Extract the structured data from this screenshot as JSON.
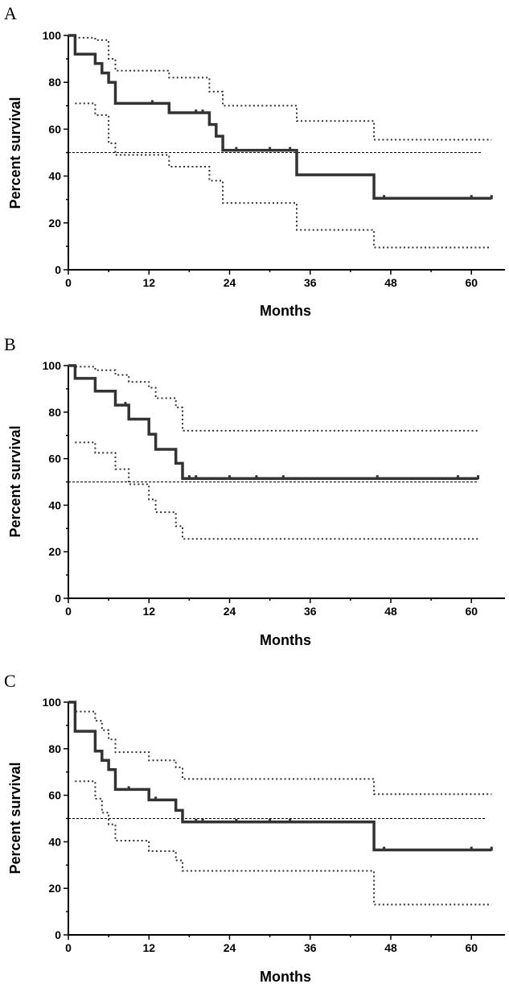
{
  "chart_data": [
    {
      "panel": "A",
      "type": "line",
      "step": true,
      "xlabel": "Months",
      "ylabel": "Percent survival",
      "xlim": [
        0,
        65
      ],
      "ylim": [
        0,
        100
      ],
      "xticks": [
        0,
        12,
        24,
        36,
        48,
        60
      ],
      "yticks": [
        0,
        20,
        40,
        60,
        80,
        100
      ],
      "reference_line": {
        "y": 50,
        "x_end": 61.5
      },
      "series": [
        {
          "role": "estimate",
          "x": [
            0,
            1,
            4,
            5,
            6,
            7,
            15,
            21,
            22,
            23,
            34,
            45.5,
            63
          ],
          "y": [
            100,
            92,
            88,
            84,
            80,
            71,
            67,
            62,
            57,
            51,
            40.5,
            30.5,
            30.5
          ]
        },
        {
          "role": "upper-ci",
          "x": [
            0,
            1,
            4,
            6,
            7,
            15,
            21,
            23,
            34,
            45.5,
            63
          ],
          "y": [
            100,
            99,
            98,
            90,
            85,
            82,
            76,
            70,
            63.5,
            55.5,
            55.5
          ]
        },
        {
          "role": "lower-ci",
          "x": [
            1,
            4,
            6,
            7,
            15,
            21,
            23,
            34,
            45.5,
            63
          ],
          "y": [
            71,
            66,
            54,
            49,
            44,
            38,
            28.5,
            17,
            9.5,
            9.5
          ]
        }
      ],
      "censored": [
        [
          12.5,
          71
        ],
        [
          19,
          67
        ],
        [
          20,
          67
        ],
        [
          25,
          51
        ],
        [
          30,
          51
        ],
        [
          33,
          51
        ],
        [
          47,
          30.5
        ],
        [
          60,
          30.5
        ],
        [
          63,
          30.5
        ]
      ]
    },
    {
      "panel": "B",
      "type": "line",
      "step": true,
      "xlabel": "Months",
      "ylabel": "Percent survival",
      "xlim": [
        0,
        65
      ],
      "ylim": [
        0,
        100
      ],
      "xticks": [
        0,
        12,
        24,
        36,
        48,
        60
      ],
      "yticks": [
        0,
        20,
        40,
        60,
        80,
        100
      ],
      "reference_line": {
        "y": 50,
        "x_end": 61
      },
      "series": [
        {
          "role": "estimate",
          "x": [
            0,
            1,
            4,
            7,
            9,
            12,
            13,
            16,
            17,
            61
          ],
          "y": [
            100,
            94.5,
            89,
            83,
            77,
            70.5,
            64,
            58,
            51.5,
            51.5
          ]
        },
        {
          "role": "upper-ci",
          "x": [
            0,
            1,
            4,
            7,
            9,
            12,
            13,
            16,
            17,
            61
          ],
          "y": [
            100,
            99.5,
            98,
            96,
            93,
            90.5,
            86,
            82,
            72,
            72
          ]
        },
        {
          "role": "lower-ci",
          "x": [
            1,
            4,
            7,
            9,
            12,
            13,
            16,
            17,
            61
          ],
          "y": [
            67,
            62.5,
            55.5,
            49,
            42.5,
            37,
            31,
            25.5,
            25.5
          ]
        }
      ],
      "censored": [
        [
          8.5,
          83
        ],
        [
          18,
          51.5
        ],
        [
          19,
          51.5
        ],
        [
          24,
          51.5
        ],
        [
          28,
          51.5
        ],
        [
          32,
          51.5
        ],
        [
          46,
          51.5
        ],
        [
          58,
          51.5
        ],
        [
          61,
          51.5
        ]
      ]
    },
    {
      "panel": "C",
      "type": "line",
      "step": true,
      "xlabel": "Months",
      "ylabel": "Percent survival",
      "xlim": [
        0,
        65
      ],
      "ylim": [
        0,
        100
      ],
      "xticks": [
        0,
        12,
        24,
        36,
        48,
        60
      ],
      "yticks": [
        0,
        20,
        40,
        60,
        80,
        100
      ],
      "reference_line": {
        "y": 50,
        "x_end": 62
      },
      "series": [
        {
          "role": "estimate",
          "x": [
            0,
            1,
            4,
            5,
            6,
            7,
            12,
            16,
            17,
            45.5,
            63
          ],
          "y": [
            100,
            87.5,
            79,
            75,
            71,
            62.5,
            58,
            53.5,
            48.5,
            36.5,
            36.5
          ]
        },
        {
          "role": "upper-ci",
          "x": [
            0,
            1,
            4,
            5,
            6,
            7,
            12,
            16,
            17,
            45.5,
            63
          ],
          "y": [
            100,
            96,
            92,
            88,
            84,
            78.5,
            75,
            72,
            67,
            60.5,
            60.5
          ]
        },
        {
          "role": "lower-ci",
          "x": [
            1,
            4,
            5,
            6,
            7,
            12,
            16,
            17,
            45.5,
            63
          ],
          "y": [
            66,
            58.5,
            52.5,
            47.5,
            40.5,
            36,
            32,
            27.5,
            13,
            13
          ]
        }
      ],
      "censored": [
        [
          9,
          62.5
        ],
        [
          13,
          58
        ],
        [
          19,
          48.5
        ],
        [
          20,
          48.5
        ],
        [
          25,
          48.5
        ],
        [
          30,
          48.5
        ],
        [
          33,
          48.5
        ],
        [
          47,
          36.5
        ],
        [
          60,
          36.5
        ],
        [
          63,
          36.5
        ]
      ]
    }
  ]
}
